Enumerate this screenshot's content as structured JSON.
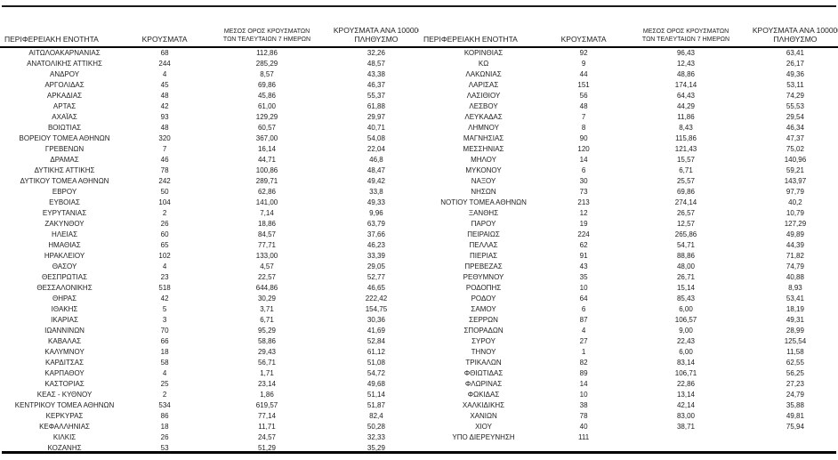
{
  "page": {
    "background_color": "#ffffff",
    "text_color": "#212121",
    "rule_color": "#000000"
  },
  "table": {
    "headers": {
      "region": "ΠΕΡΙΦΕΡΕΙΑΚΗ ΕΝΟΤΗΤΑ",
      "cases": "ΚΡΟΥΣΜΑΤΑ",
      "avg7_line1": "ΜΕΣΟΣ ΟΡΟΣ ΚΡΟΥΣΜΑΤΩΝ",
      "avg7_line2": "ΤΩΝ ΤΕΛΕΥΤΑΙΩΝ 7 ΗΜΕΡΩΝ",
      "per100k_line1": "ΚΡΟΥΣΜΑΤΑ ΑΝΑ 100000",
      "per100k_line2": "ΠΛΗΘΥΣΜΟ"
    },
    "left_rows": [
      [
        "ΑΙΤΩΛΟΑΚΑΡΝΑΝΙΑΣ",
        "68",
        "112,86",
        "32,26"
      ],
      [
        "ΑΝΑΤΟΛΙΚΗΣ ΑΤΤΙΚΗΣ",
        "244",
        "285,29",
        "48,57"
      ],
      [
        "ΑΝΔΡΟΥ",
        "4",
        "8,57",
        "43,38"
      ],
      [
        "ΑΡΓΟΛΙΔΑΣ",
        "45",
        "69,86",
        "46,37"
      ],
      [
        "ΑΡΚΑΔΙΑΣ",
        "48",
        "45,86",
        "55,37"
      ],
      [
        "ΑΡΤΑΣ",
        "42",
        "61,00",
        "61,88"
      ],
      [
        "ΑΧΑΪΑΣ",
        "93",
        "129,29",
        "29,97"
      ],
      [
        "ΒΟΙΩΤΙΑΣ",
        "48",
        "60,57",
        "40,71"
      ],
      [
        "ΒΟΡΕΙΟΥ ΤΟΜΕΑ ΑΘΗΝΩΝ",
        "320",
        "367,00",
        "54,08"
      ],
      [
        "ΓΡΕΒΕΝΩΝ",
        "7",
        "16,14",
        "22,04"
      ],
      [
        "ΔΡΑΜΑΣ",
        "46",
        "44,71",
        "46,8"
      ],
      [
        "ΔΥΤΙΚΗΣ ΑΤΤΙΚΗΣ",
        "78",
        "100,86",
        "48,47"
      ],
      [
        "ΔΥΤΙΚΟΥ ΤΟΜΕΑ ΑΘΗΝΩΝ",
        "242",
        "289,71",
        "49,42"
      ],
      [
        "ΕΒΡΟΥ",
        "50",
        "62,86",
        "33,8"
      ],
      [
        "ΕΥΒΟΙΑΣ",
        "104",
        "141,00",
        "49,33"
      ],
      [
        "ΕΥΡΥΤΑΝΙΑΣ",
        "2",
        "7,14",
        "9,96"
      ],
      [
        "ΖΑΚΥΝΘΟΥ",
        "26",
        "18,86",
        "63,79"
      ],
      [
        "ΗΛΕΙΑΣ",
        "60",
        "84,57",
        "37,66"
      ],
      [
        "ΗΜΑΘΙΑΣ",
        "65",
        "77,71",
        "46,23"
      ],
      [
        "ΗΡΑΚΛΕΙΟΥ",
        "102",
        "133,00",
        "33,39"
      ],
      [
        "ΘΑΣΟΥ",
        "4",
        "4,57",
        "29,05"
      ],
      [
        "ΘΕΣΠΡΩΤΙΑΣ",
        "23",
        "22,57",
        "52,77"
      ],
      [
        "ΘΕΣΣΑΛΟΝΙΚΗΣ",
        "518",
        "644,86",
        "46,65"
      ],
      [
        "ΘΗΡΑΣ",
        "42",
        "30,29",
        "222,42"
      ],
      [
        "ΙΘΑΚΗΣ",
        "5",
        "3,71",
        "154,75"
      ],
      [
        "ΙΚΑΡΙΑΣ",
        "3",
        "6,71",
        "30,36"
      ],
      [
        "ΙΩΑΝΝΙΝΩΝ",
        "70",
        "95,29",
        "41,69"
      ],
      [
        "ΚΑΒΑΛΑΣ",
        "66",
        "58,86",
        "52,84"
      ],
      [
        "ΚΑΛΥΜΝΟΥ",
        "18",
        "29,43",
        "61,12"
      ],
      [
        "ΚΑΡΔΙΤΣΑΣ",
        "58",
        "56,71",
        "51,08"
      ],
      [
        "ΚΑΡΠΑΘΟΥ",
        "4",
        "1,71",
        "54,72"
      ],
      [
        "ΚΑΣΤΟΡΙΑΣ",
        "25",
        "23,14",
        "49,68"
      ],
      [
        "ΚΕΑΣ - ΚΥΘΝΟΥ",
        "2",
        "1,86",
        "51,14"
      ],
      [
        "ΚΕΝΤΡΙΚΟΥ ΤΟΜΕΑ ΑΘΗΝΩΝ",
        "534",
        "619,57",
        "51,87"
      ],
      [
        "ΚΕΡΚΥΡΑΣ",
        "86",
        "77,14",
        "82,4"
      ],
      [
        "ΚΕΦΑΛΛΗΝΙΑΣ",
        "18",
        "11,71",
        "50,28"
      ],
      [
        "ΚΙΛΚΙΣ",
        "26",
        "24,57",
        "32,33"
      ],
      [
        "ΚΟΖΑΝΗΣ",
        "53",
        "51,29",
        "35,29"
      ]
    ],
    "right_rows": [
      [
        "ΚΟΡΙΝΘΙΑΣ",
        "92",
        "96,43",
        "63,41"
      ],
      [
        "ΚΩ",
        "9",
        "12,43",
        "26,17"
      ],
      [
        "ΛΑΚΩΝΙΑΣ",
        "44",
        "48,86",
        "49,36"
      ],
      [
        "ΛΑΡΙΣΑΣ",
        "151",
        "174,14",
        "53,11"
      ],
      [
        "ΛΑΣΙΘΙΟΥ",
        "56",
        "64,43",
        "74,29"
      ],
      [
        "ΛΕΣΒΟΥ",
        "48",
        "44,29",
        "55,53"
      ],
      [
        "ΛΕΥΚΑΔΑΣ",
        "7",
        "11,86",
        "29,54"
      ],
      [
        "ΛΗΜΝΟΥ",
        "8",
        "8,43",
        "46,34"
      ],
      [
        "ΜΑΓΝΗΣΙΑΣ",
        "90",
        "115,86",
        "47,37"
      ],
      [
        "ΜΕΣΣΗΝΙΑΣ",
        "120",
        "121,43",
        "75,02"
      ],
      [
        "ΜΗΛΟΥ",
        "14",
        "15,57",
        "140,96"
      ],
      [
        "ΜΥΚΟΝΟΥ",
        "6",
        "6,71",
        "59,21"
      ],
      [
        "ΝΑΞΟΥ",
        "30",
        "25,57",
        "143,97"
      ],
      [
        "ΝΗΣΩΝ",
        "73",
        "69,86",
        "97,79"
      ],
      [
        "ΝΟΤΙΟΥ ΤΟΜΕΑ ΑΘΗΝΩΝ",
        "213",
        "274,14",
        "40,2"
      ],
      [
        "ΞΑΝΘΗΣ",
        "12",
        "26,57",
        "10,79"
      ],
      [
        "ΠΑΡΟΥ",
        "19",
        "12,57",
        "127,29"
      ],
      [
        "ΠΕΙΡΑΙΩΣ",
        "224",
        "265,86",
        "49,89"
      ],
      [
        "ΠΕΛΛΑΣ",
        "62",
        "54,71",
        "44,39"
      ],
      [
        "ΠΙΕΡΙΑΣ",
        "91",
        "88,86",
        "71,82"
      ],
      [
        "ΠΡΕΒΕΖΑΣ",
        "43",
        "48,00",
        "74,79"
      ],
      [
        "ΡΕΘΥΜΝΟΥ",
        "35",
        "26,71",
        "40,88"
      ],
      [
        "ΡΟΔΟΠΗΣ",
        "10",
        "15,14",
        "8,93"
      ],
      [
        "ΡΟΔΟΥ",
        "64",
        "85,43",
        "53,41"
      ],
      [
        "ΣΑΜΟΥ",
        "6",
        "6,00",
        "18,19"
      ],
      [
        "ΣΕΡΡΩΝ",
        "87",
        "106,57",
        "49,31"
      ],
      [
        "ΣΠΟΡΑΔΩΝ",
        "4",
        "9,00",
        "28,99"
      ],
      [
        "ΣΥΡΟΥ",
        "27",
        "22,43",
        "125,54"
      ],
      [
        "ΤΗΝΟΥ",
        "1",
        "6,00",
        "11,58"
      ],
      [
        "ΤΡΙΚΑΛΩΝ",
        "82",
        "83,14",
        "62,55"
      ],
      [
        "ΦΘΙΩΤΙΔΑΣ",
        "89",
        "106,71",
        "56,25"
      ],
      [
        "ΦΛΩΡΙΝΑΣ",
        "14",
        "22,86",
        "27,23"
      ],
      [
        "ΦΩΚΙΔΑΣ",
        "10",
        "13,14",
        "24,79"
      ],
      [
        "ΧΑΛΚΙΔΙΚΗΣ",
        "38",
        "42,14",
        "35,88"
      ],
      [
        "ΧΑΝΙΩΝ",
        "78",
        "83,00",
        "49,81"
      ],
      [
        "ΧΙΟΥ",
        "40",
        "38,71",
        "75,94"
      ],
      [
        "ΥΠΟ ΔΙΕΡΕΥΝΗΣΗ",
        "111",
        "",
        ""
      ]
    ]
  }
}
